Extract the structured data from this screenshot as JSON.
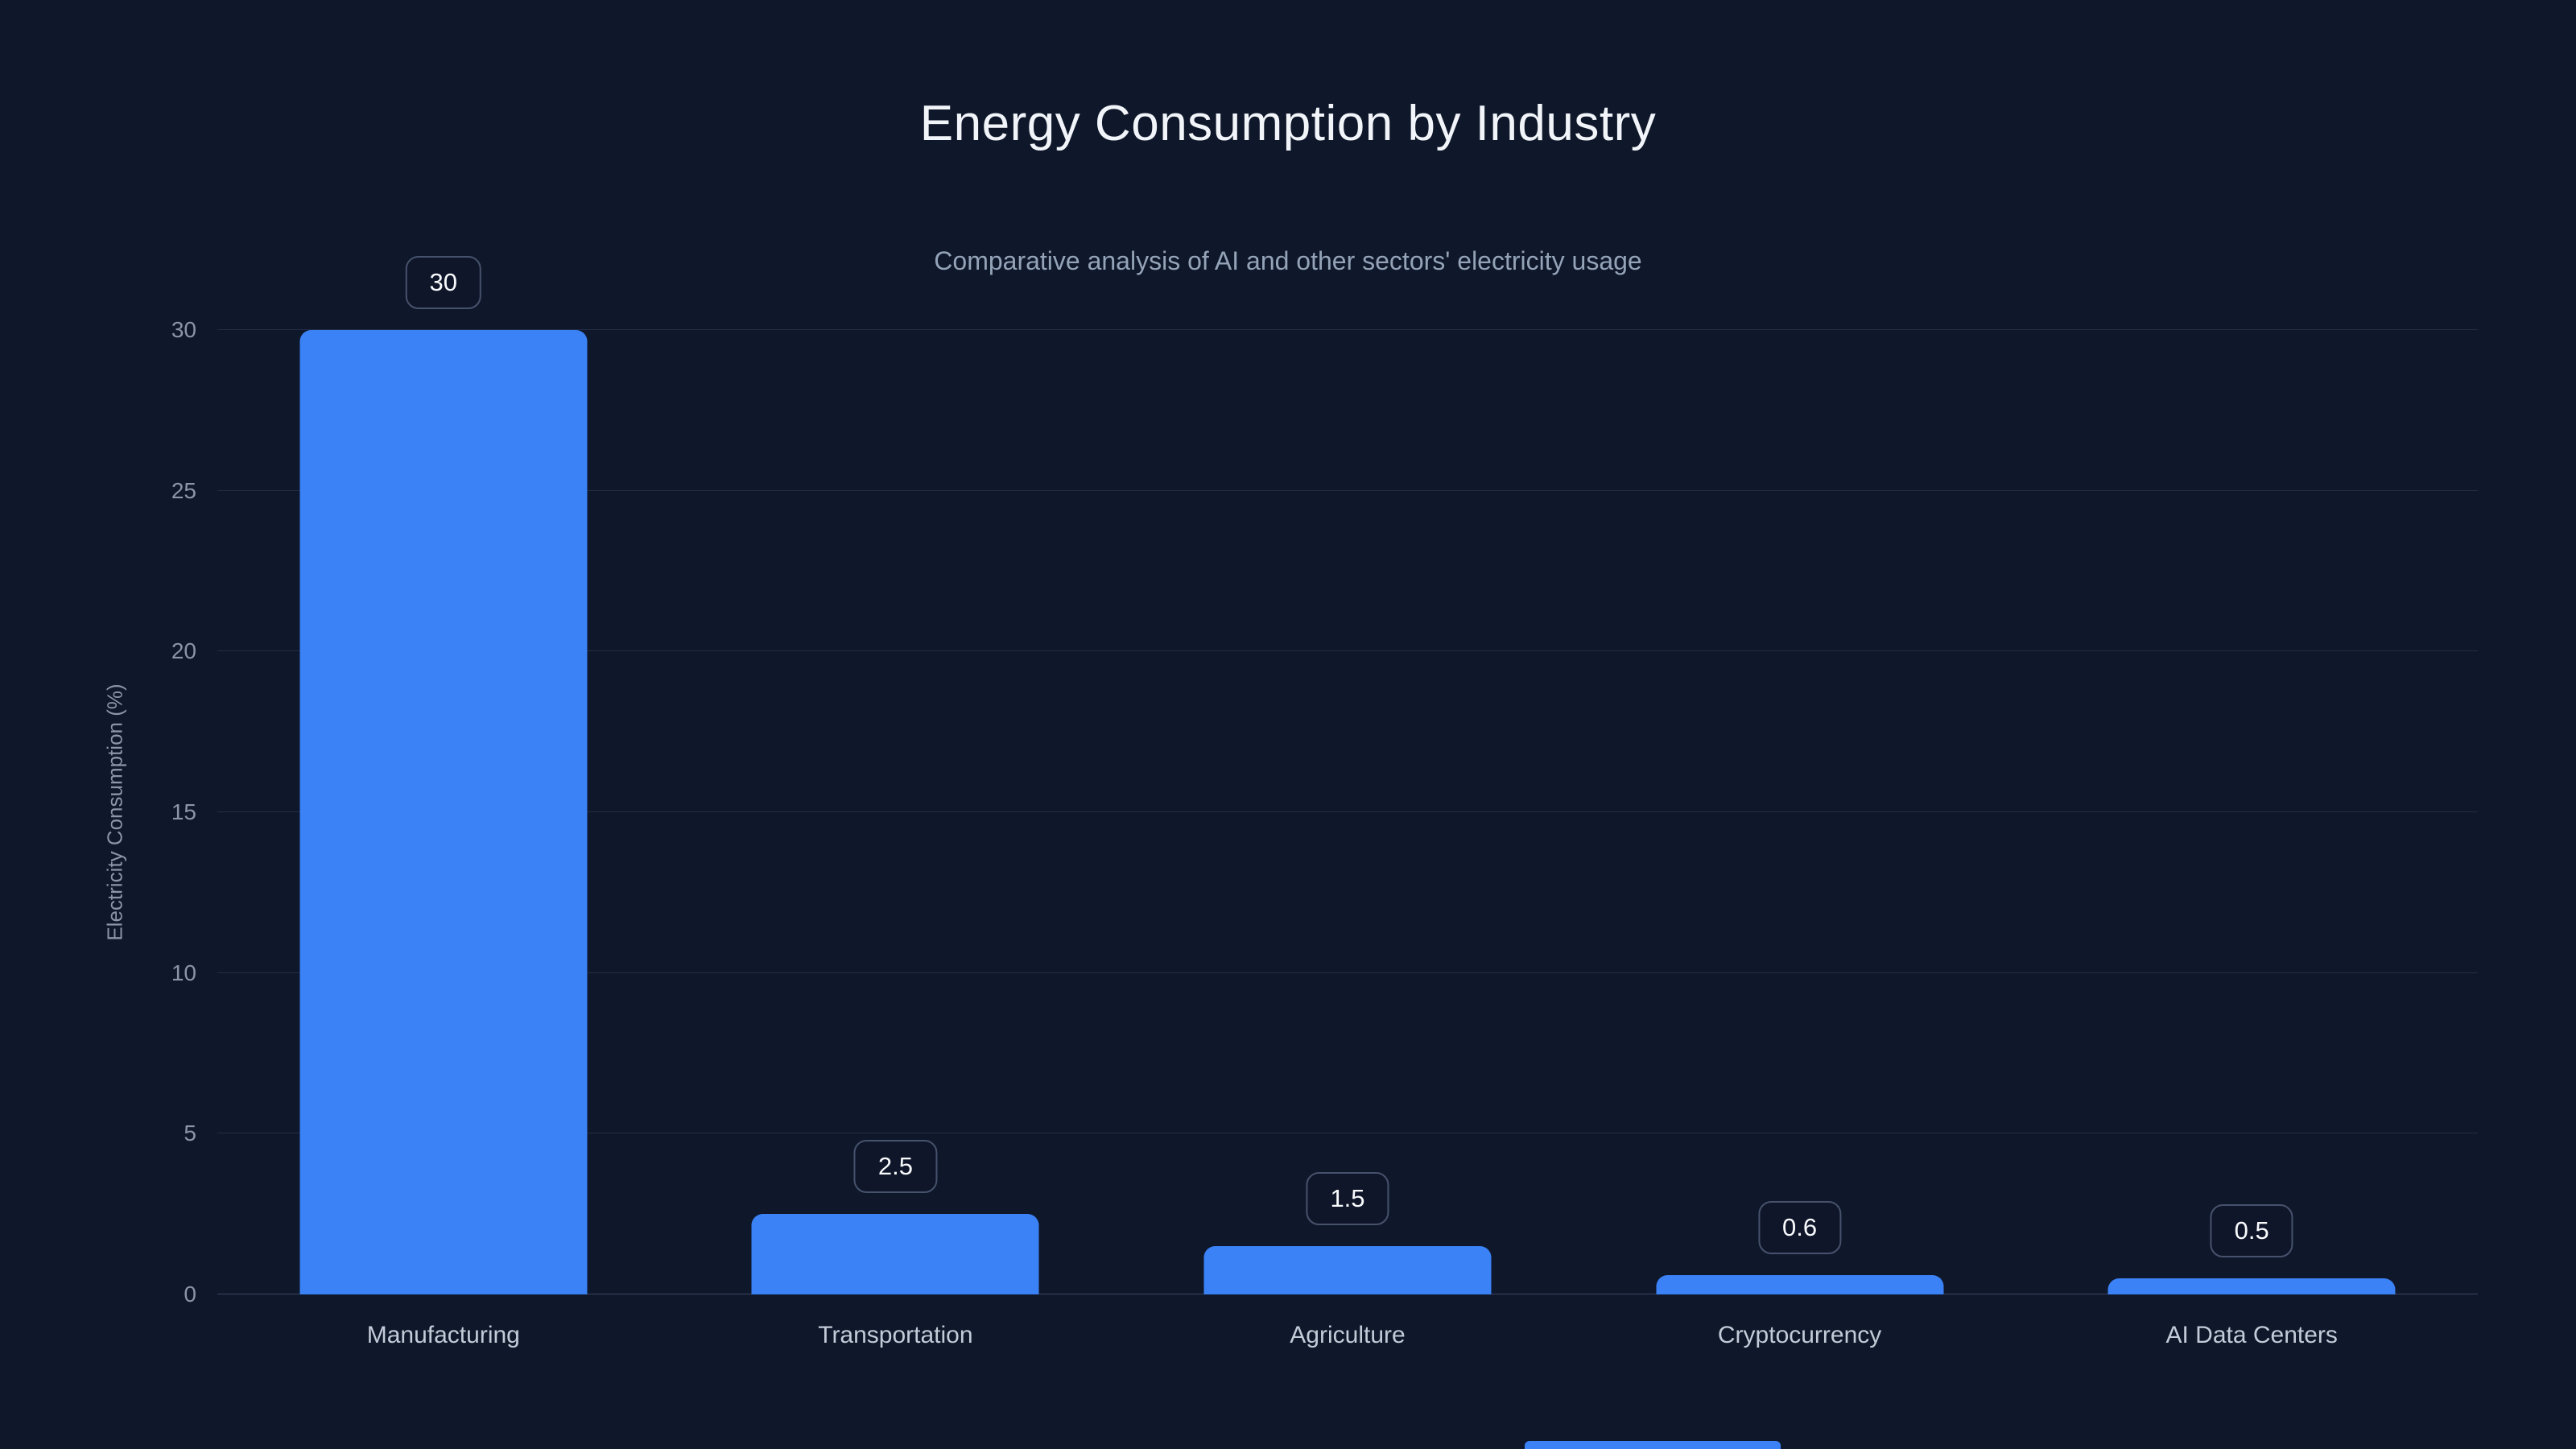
{
  "chart_data": {
    "type": "bar",
    "title": "Energy Consumption by Industry",
    "subtitle": "Comparative analysis of AI and other sectors' electricity usage",
    "categories": [
      "Manufacturing",
      "Transportation",
      "Agriculture",
      "Cryptocurrency",
      "AI Data Centers"
    ],
    "values": [
      30,
      2.5,
      1.5,
      0.6,
      0.5
    ],
    "value_labels": [
      "30",
      "2.5",
      "1.5",
      "0.6",
      "0.5"
    ],
    "xlabel": "",
    "ylabel": "Electricity Consumption (%)",
    "ylim": [
      0,
      30
    ],
    "yticks": [
      0,
      5,
      10,
      15,
      20,
      25,
      30
    ],
    "grid": true,
    "legend": "none",
    "colors": {
      "background": "#0f172a",
      "bar": "#3b82f6",
      "grid": "#232d45",
      "axis_line": "#3a445f",
      "axis_text": "#8b95a8",
      "category_text": "#c3cbd8",
      "title_text": "#f1f5f9",
      "subtitle_text": "#94a3b8",
      "badge_border": "#46526c",
      "badge_text": "#f8fafc"
    }
  }
}
